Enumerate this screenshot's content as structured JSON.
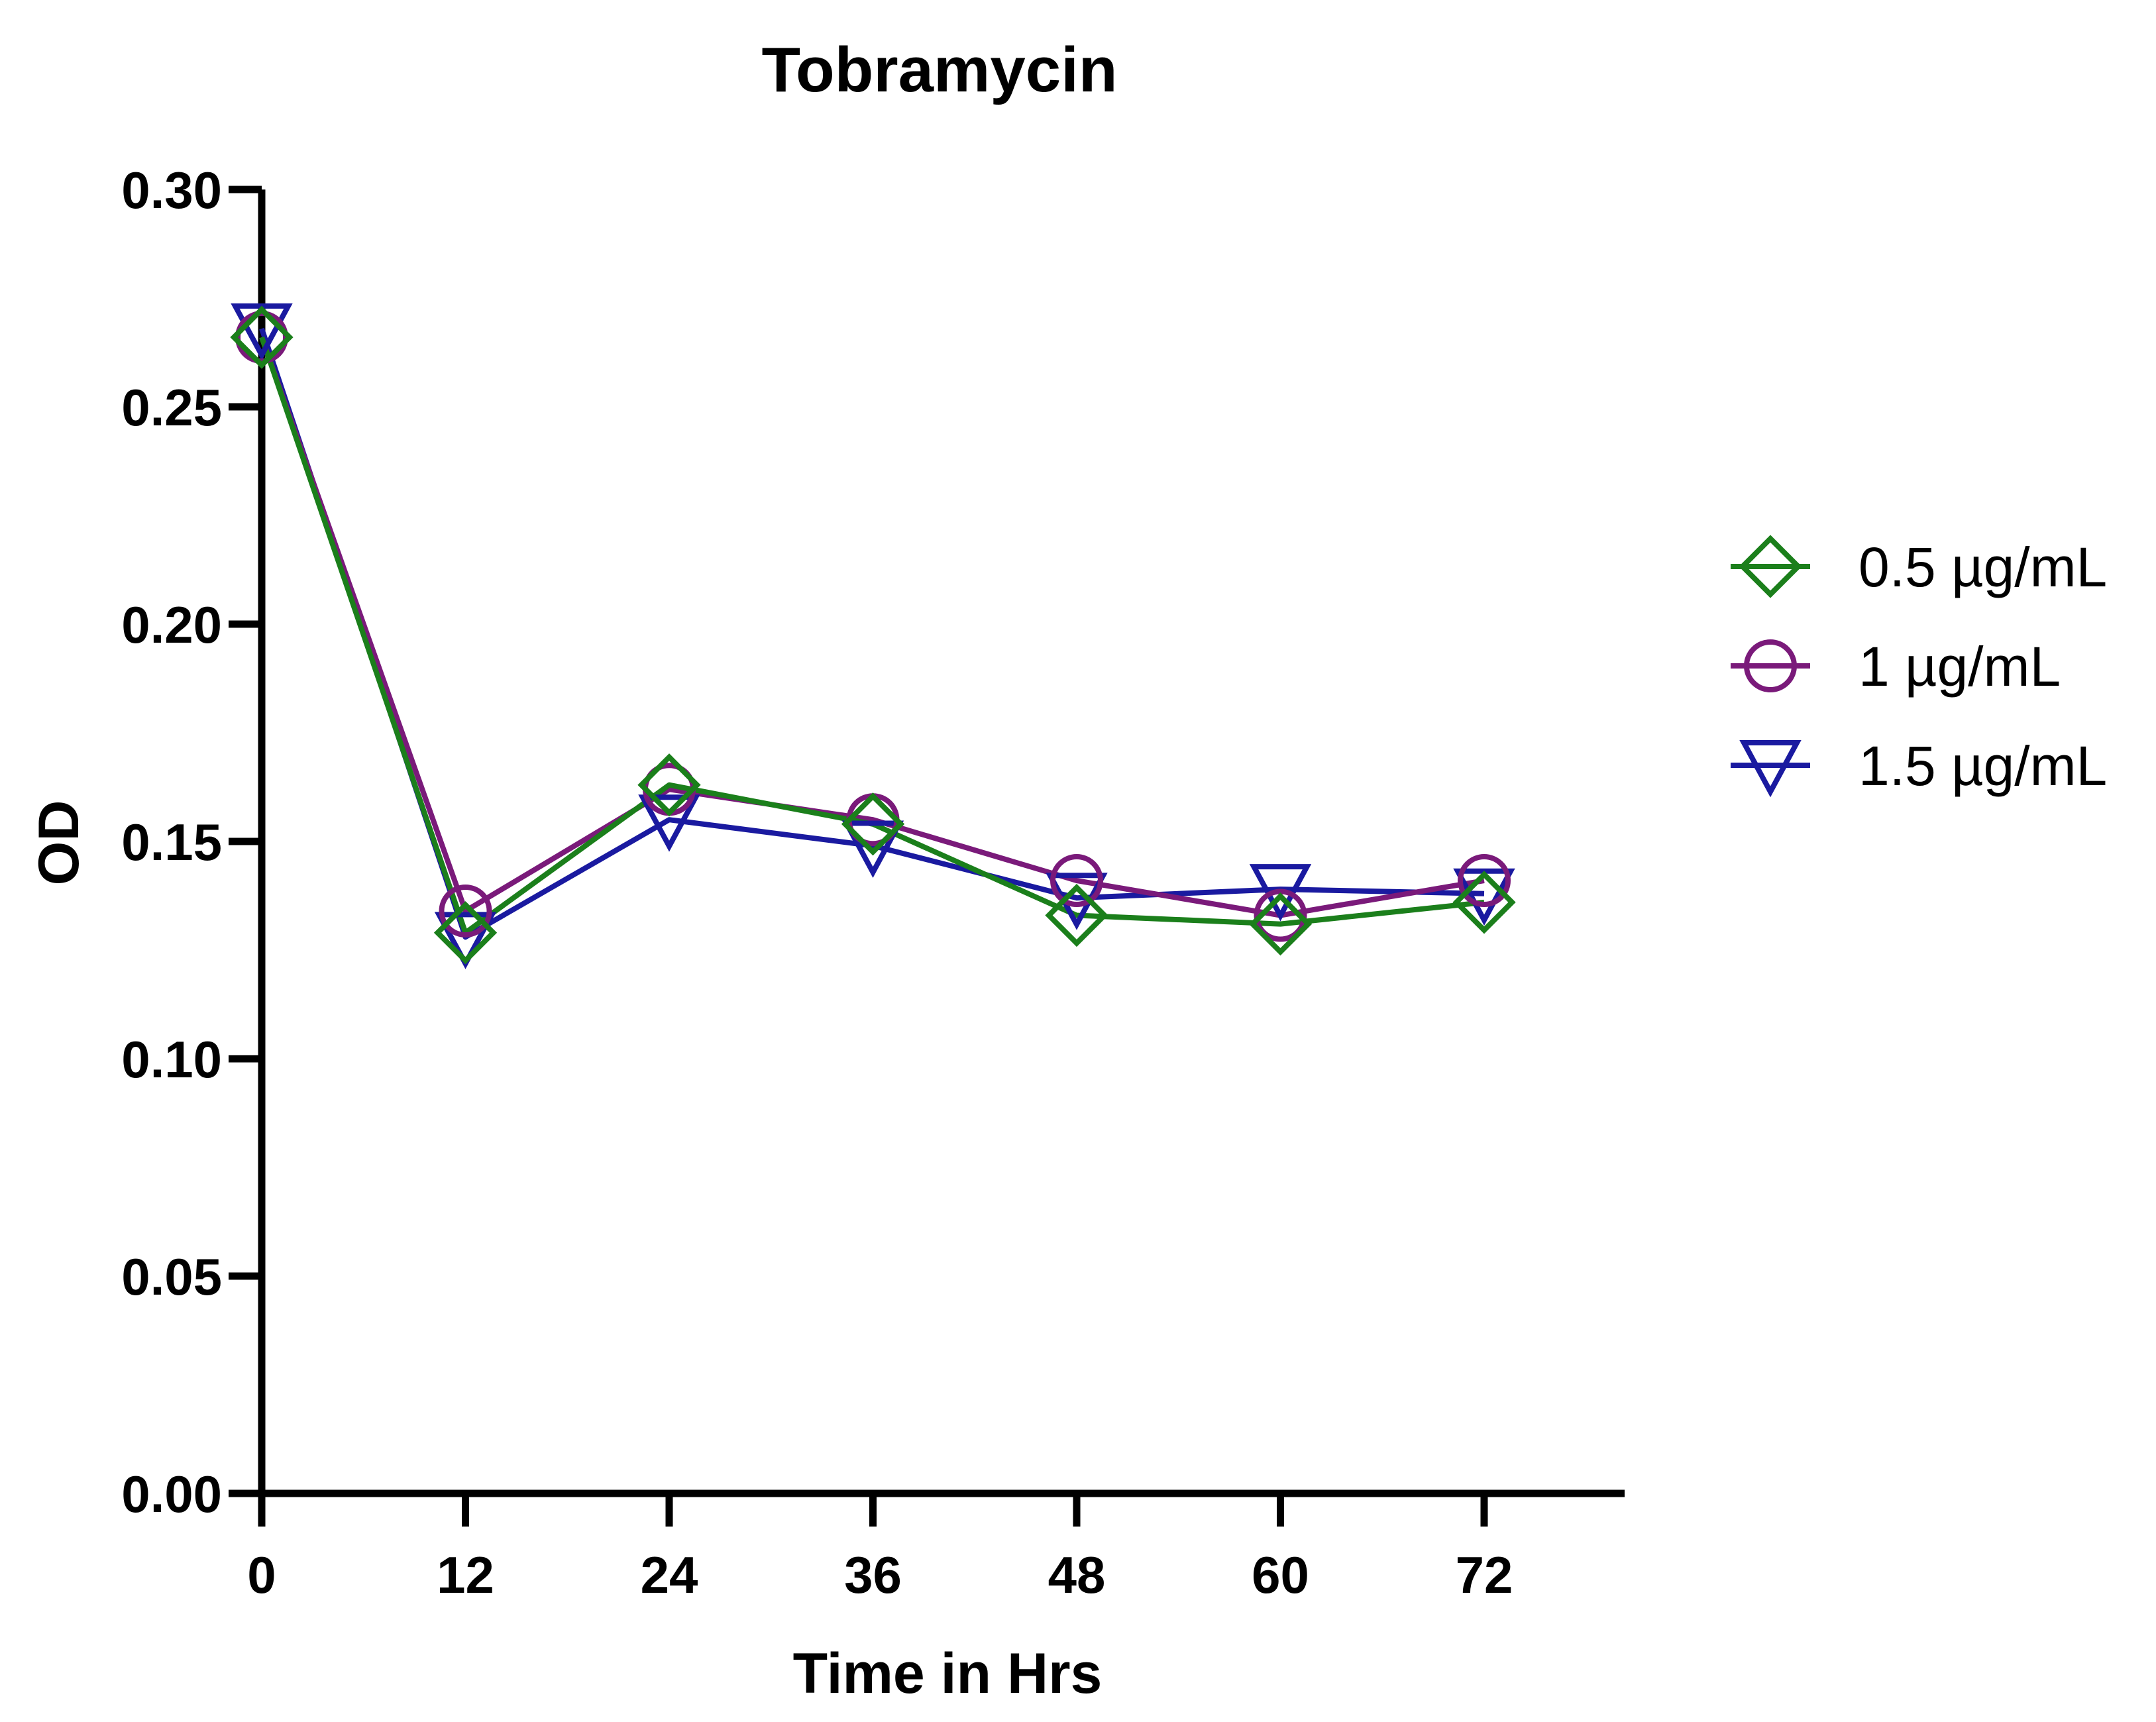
{
  "chart_data": {
    "type": "line",
    "title": "Tobramycin",
    "xlabel": "Time in Hrs",
    "ylabel": "OD",
    "x": [
      0,
      12,
      24,
      36,
      48,
      60,
      72
    ],
    "x_tick_labels": [
      "0",
      "12",
      "24",
      "36",
      "48",
      "60",
      "72"
    ],
    "xlim": [
      0,
      80
    ],
    "ylim": [
      0,
      0.3
    ],
    "y_ticks": [
      0.0,
      0.05,
      0.1,
      0.15,
      0.2,
      0.25,
      0.3
    ],
    "y_tick_labels": [
      "0.00",
      "0.05",
      "0.10",
      "0.15",
      "0.20",
      "0.25",
      "0.30"
    ],
    "grid": false,
    "legend_position": "right",
    "series": [
      {
        "name": "0.5 µg/mL",
        "color": "#1b7f1b",
        "marker": "diamond",
        "values": [
          0.266,
          0.129,
          0.163,
          0.154,
          0.133,
          0.131,
          0.136
        ]
      },
      {
        "name": "1 µg/mL",
        "color": "#7a1a7a",
        "marker": "circle",
        "values": [
          0.266,
          0.134,
          0.162,
          0.155,
          0.141,
          0.133,
          0.141
        ]
      },
      {
        "name": "1.5 µg/mL",
        "color": "#1a1aa0",
        "marker": "triangle-down",
        "values": [
          0.268,
          0.128,
          0.155,
          0.149,
          0.137,
          0.139,
          0.138
        ]
      }
    ]
  }
}
